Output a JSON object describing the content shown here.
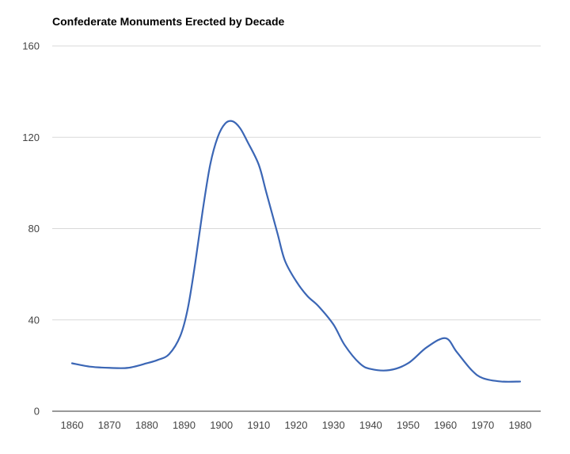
{
  "chart_data": {
    "type": "line",
    "title": "Confederate Monuments Erected by Decade",
    "xlabel": "",
    "ylabel": "",
    "x": [
      1860,
      1870,
      1880,
      1890,
      1900,
      1910,
      1920,
      1930,
      1940,
      1950,
      1960,
      1970,
      1980
    ],
    "x_tick_labels": [
      "1860",
      "1870",
      "1880",
      "1890",
      "1900",
      "1910",
      "1920",
      "1930",
      "1940",
      "1950",
      "1960",
      "1970",
      "1980"
    ],
    "y_tick_labels": [
      "0",
      "40",
      "80",
      "120",
      "160"
    ],
    "ylim": [
      0,
      160
    ],
    "xlim": [
      1860,
      1980
    ],
    "grid": true,
    "series": [
      {
        "color": "#3b66b5",
        "points": [
          [
            1860,
            21
          ],
          [
            1865,
            19.5
          ],
          [
            1870,
            19
          ],
          [
            1875,
            19
          ],
          [
            1880,
            21
          ],
          [
            1883,
            22.5
          ],
          [
            1886,
            25
          ],
          [
            1889,
            33
          ],
          [
            1891,
            45
          ],
          [
            1893,
            65
          ],
          [
            1895,
            88
          ],
          [
            1897,
            108
          ],
          [
            1899,
            120
          ],
          [
            1901,
            126
          ],
          [
            1903,
            127
          ],
          [
            1905,
            124
          ],
          [
            1907,
            118
          ],
          [
            1910,
            108
          ],
          [
            1912,
            96
          ],
          [
            1915,
            78
          ],
          [
            1917,
            66
          ],
          [
            1920,
            57
          ],
          [
            1923,
            50.5
          ],
          [
            1926,
            46
          ],
          [
            1930,
            38
          ],
          [
            1933,
            29
          ],
          [
            1937,
            21
          ],
          [
            1940,
            18.5
          ],
          [
            1945,
            18
          ],
          [
            1950,
            21
          ],
          [
            1955,
            28
          ],
          [
            1960,
            32
          ],
          [
            1963,
            26
          ],
          [
            1967,
            18
          ],
          [
            1970,
            14.5
          ],
          [
            1975,
            13
          ],
          [
            1980,
            13
          ]
        ]
      }
    ]
  }
}
